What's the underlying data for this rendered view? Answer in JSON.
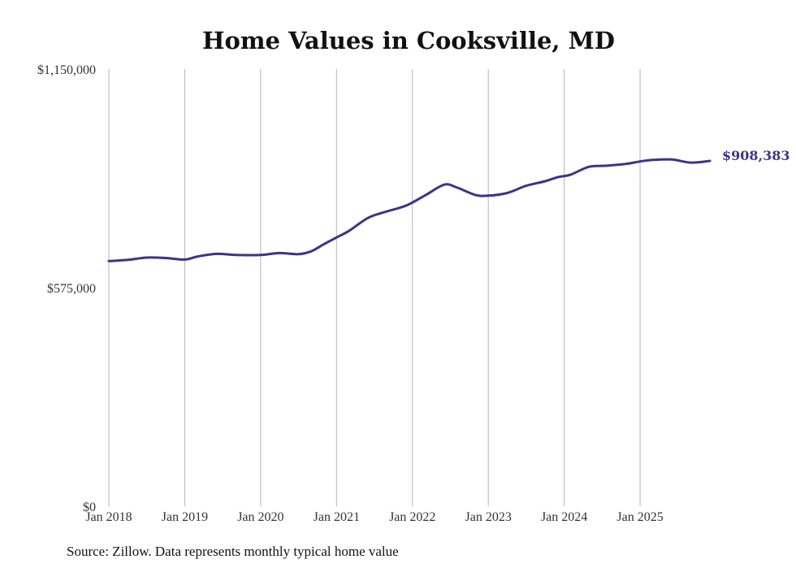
{
  "chart_data": {
    "type": "line",
    "title": "Home Values in Cooksville, MD",
    "xlabel": "",
    "ylabel": "",
    "ylim": [
      0,
      1150000
    ],
    "y_ticks": [
      {
        "value": 0,
        "label": "$0"
      },
      {
        "value": 575000,
        "label": "$575,000"
      },
      {
        "value": 1150000,
        "label": "$1,150,000"
      }
    ],
    "x_ticks": [
      {
        "value": 2018.0,
        "label": "Jan 2018"
      },
      {
        "value": 2019.0,
        "label": "Jan 2019"
      },
      {
        "value": 2020.0,
        "label": "Jan 2020"
      },
      {
        "value": 2021.0,
        "label": "Jan 2021"
      },
      {
        "value": 2022.0,
        "label": "Jan 2022"
      },
      {
        "value": 2023.0,
        "label": "Jan 2023"
      },
      {
        "value": 2024.0,
        "label": "Jan 2024"
      },
      {
        "value": 2025.0,
        "label": "Jan 2025"
      }
    ],
    "xlim": [
      2018.0,
      2025.92
    ],
    "grid": "vertical",
    "series": [
      {
        "name": "Typical home value",
        "color": "#3d3389",
        "end_label": "$908,383",
        "x": [
          2018.0,
          2018.25,
          2018.5,
          2018.75,
          2019.0,
          2019.17,
          2019.42,
          2019.67,
          2020.0,
          2020.25,
          2020.5,
          2020.67,
          2020.83,
          2021.0,
          2021.17,
          2021.42,
          2021.67,
          2021.92,
          2022.17,
          2022.42,
          2022.58,
          2022.83,
          2023.0,
          2023.25,
          2023.5,
          2023.75,
          2023.92,
          2024.08,
          2024.33,
          2024.58,
          2024.83,
          2025.0,
          2025.17,
          2025.42,
          2025.67,
          2025.92
        ],
        "values": [
          645000,
          648000,
          654000,
          653000,
          649000,
          657000,
          664000,
          661000,
          661000,
          666000,
          663000,
          671000,
          689000,
          707000,
          725000,
          759000,
          776000,
          791000,
          818000,
          846000,
          839000,
          819000,
          817000,
          824000,
          843000,
          855000,
          866000,
          872000,
          893000,
          896000,
          901000,
          907000,
          911000,
          912000,
          904000,
          908383
        ]
      }
    ],
    "source": "Source: Zillow. Data represents monthly typical home value"
  }
}
